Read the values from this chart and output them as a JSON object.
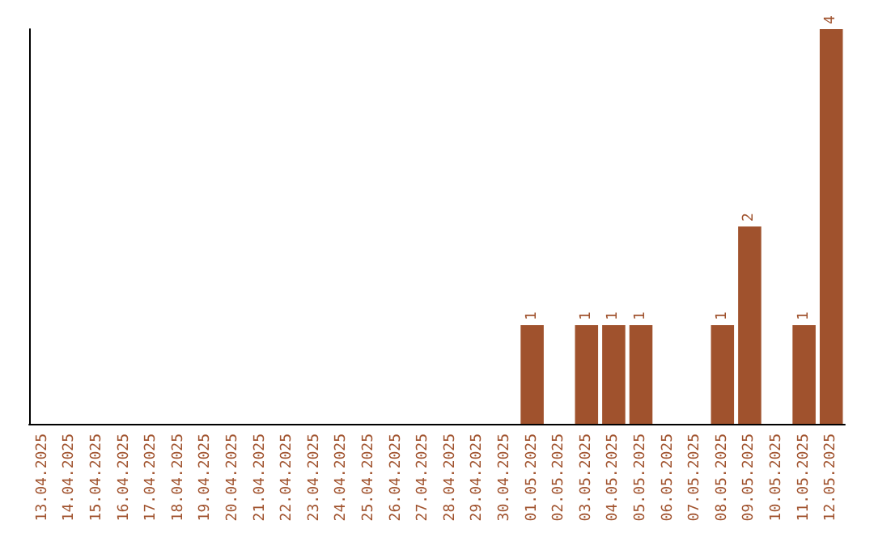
{
  "chart_data": {
    "type": "bar",
    "categories": [
      "13.04.2025",
      "14.04.2025",
      "15.04.2025",
      "16.04.2025",
      "17.04.2025",
      "18.04.2025",
      "19.04.2025",
      "20.04.2025",
      "21.04.2025",
      "22.04.2025",
      "23.04.2025",
      "24.04.2025",
      "25.04.2025",
      "26.04.2025",
      "27.04.2025",
      "28.04.2025",
      "29.04.2025",
      "30.04.2025",
      "01.05.2025",
      "02.05.2025",
      "03.05.2025",
      "04.05.2025",
      "05.05.2025",
      "06.05.2025",
      "07.05.2025",
      "08.05.2025",
      "09.05.2025",
      "10.05.2025",
      "11.05.2025",
      "12.05.2025"
    ],
    "values": [
      null,
      null,
      null,
      null,
      null,
      null,
      null,
      null,
      null,
      null,
      null,
      null,
      null,
      null,
      null,
      null,
      null,
      null,
      1,
      null,
      1,
      1,
      1,
      null,
      null,
      1,
      2,
      null,
      1,
      4
    ],
    "value_labels": [
      null,
      null,
      null,
      null,
      null,
      null,
      null,
      null,
      null,
      null,
      null,
      null,
      null,
      null,
      null,
      null,
      null,
      null,
      "1",
      null,
      "1",
      "1",
      "1",
      null,
      null,
      "1",
      "2",
      null,
      "1",
      "4"
    ],
    "color": "#a0522d",
    "grid": false,
    "tick_labels": "x"
  }
}
